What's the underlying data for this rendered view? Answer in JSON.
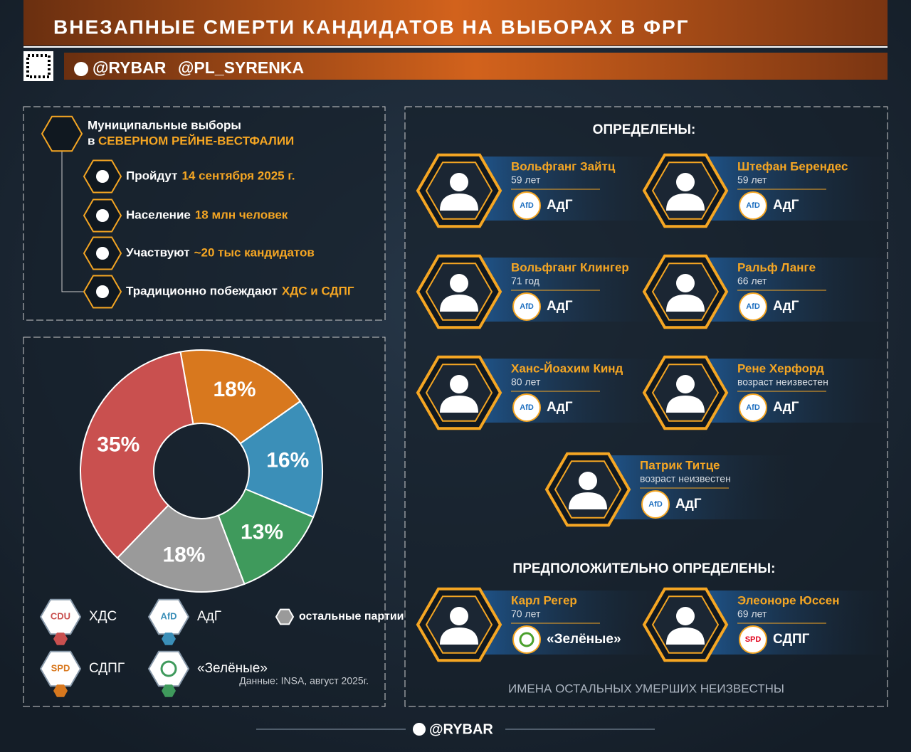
{
  "header": {
    "title": "ВНЕЗАПНЫЕ СМЕРТИ КАНДИДАТОВ НА ВЫБОРАХ В ФРГ",
    "handles": [
      "@RYBAR",
      "@PL_SYRENKA"
    ]
  },
  "election": {
    "title": "Муниципальные выборы",
    "title_prefix": "в",
    "region": "СЕВЕРНОМ РЕЙНЕ-ВЕСТФАЛИИ",
    "facts": [
      {
        "label": "Пройдут",
        "value": "14 сентября 2025 г."
      },
      {
        "label": "Население",
        "value": "18 млн человек"
      },
      {
        "label": "Участвуют",
        "value": "~20 тыс кандидатов"
      },
      {
        "label": "Традиционно побеждают",
        "value": "ХДС и СДПГ"
      }
    ]
  },
  "chart_data": {
    "type": "donut",
    "categories": [
      "СДПГ",
      "АдГ",
      "«Зелёные»",
      "остальные партии",
      "ХДС"
    ],
    "values": [
      18,
      16,
      13,
      18,
      35
    ],
    "value_labels": [
      "18%",
      "16%",
      "13%",
      "18%",
      "35%"
    ],
    "colors": [
      "#d8781e",
      "#3b8fb8",
      "#3f9a5c",
      "#9a9a9a",
      "#c9504f"
    ],
    "logos": [
      "SPD",
      "AfD",
      null,
      null,
      "CDU"
    ],
    "source": "Данные: INSA, август 2025г."
  },
  "confirmed": {
    "title": "ОПРЕДЕЛЕНЫ:",
    "persons": [
      {
        "name": "Вольфганг Зайтц",
        "age": "59 лет",
        "party": "АдГ",
        "logo": "AfD",
        "logo_color": "#1e6fc0"
      },
      {
        "name": "Штефан Берендес",
        "age": "59 лет",
        "party": "АдГ",
        "logo": "AfD",
        "logo_color": "#1e6fc0"
      },
      {
        "name": "Вольфганг Клингер",
        "age": "71 год",
        "party": "АдГ",
        "logo": "AfD",
        "logo_color": "#1e6fc0"
      },
      {
        "name": "Ральф Ланге",
        "age": "66 лет",
        "party": "АдГ",
        "logo": "AfD",
        "logo_color": "#1e6fc0"
      },
      {
        "name": "Ханс-Йоахим Кинд",
        "age": "80 лет",
        "party": "АдГ",
        "logo": "AfD",
        "logo_color": "#1e6fc0"
      },
      {
        "name": "Рене Херфорд",
        "age": "возраст неизвестен",
        "party": "АдГ",
        "logo": "AfD",
        "logo_color": "#1e6fc0"
      },
      {
        "name": "Патрик Титце",
        "age": "возраст неизвестен",
        "party": "АдГ",
        "logo": "AfD",
        "logo_color": "#1e6fc0"
      }
    ]
  },
  "presumed": {
    "title": "ПРЕДПОЛОЖИТЕЛЬНО ОПРЕДЕЛЕНЫ:",
    "persons": [
      {
        "name": "Карл Регер",
        "age": "70 лет",
        "party": "«Зелёные»",
        "logo_color": "#4aa02c"
      },
      {
        "name": "Элеоноре Юссен",
        "age": "69 лет",
        "party": "СДПГ",
        "logo": "SPD",
        "logo_color": "#e2001a"
      }
    ]
  },
  "note": "ИМЕНА ОСТАЛЬНЫХ УМЕРШИХ НЕИЗВЕСТНЫ",
  "footer": "@RYBAR"
}
